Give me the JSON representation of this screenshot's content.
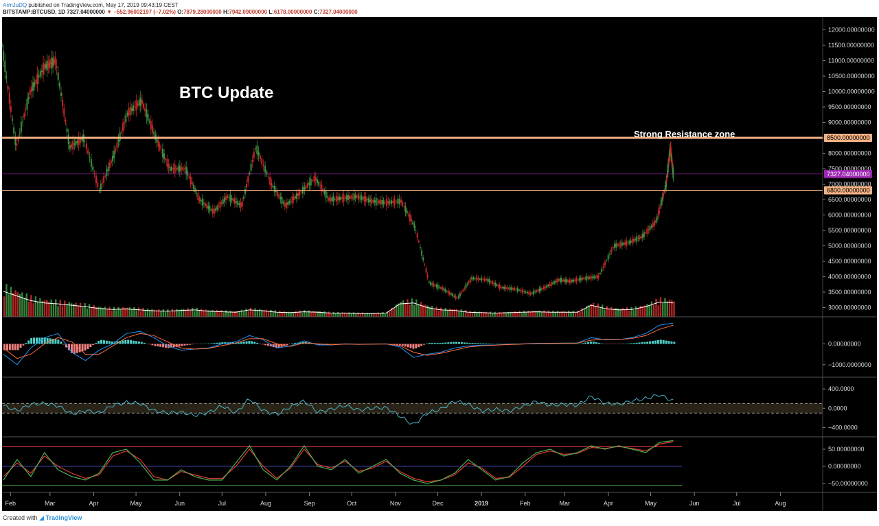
{
  "header": {
    "author": "ArmJuDQ",
    "published": "published on TradingView.com, May 17, 2019 09:43:19 CEST",
    "symbol": "BITSTAMP:BTCUSD, 1D",
    "last": "7327.04000000",
    "change": "−552.96002197 (−7.02%)",
    "o_label": "O:",
    "o_value": "7879.28000000",
    "h_label": "H:",
    "h_value": "7942.09000000",
    "l_label": "L:",
    "l_value": "6178.00000000",
    "c_label": "C:",
    "c_value": "7327.04000000"
  },
  "footer": {
    "created_with": "Created with",
    "brand": "TradingView"
  },
  "colors": {
    "background": "#000000",
    "up": "#3d9140",
    "down": "#c62828",
    "resistance": "#f4b183",
    "current_price": "#9c27b0",
    "support": "#f4b183",
    "macd_line": "#2196f3",
    "signal_line": "#ff7043",
    "hist_pos": "#4dd0c8",
    "hist_neg": "#f08080",
    "cci_line": "#4fc3d9",
    "stoch_k": "#4caf50",
    "stoch_d": "#e53935"
  },
  "chart_data": [
    {
      "type": "line",
      "panel": "price",
      "title": "BTC Update",
      "annotation": "Strong Resistance zone",
      "ylim": [
        2700,
        12300
      ],
      "yticks": [
        "12000.00000000",
        "11500.00000000",
        "11000.00000000",
        "10500.00000000",
        "10000.00000000",
        "9500.00000000",
        "9000.00000000",
        "8500.00000000",
        "8000.00000000",
        "7500.00000000",
        "7000.00000000",
        "6500.00000000",
        "6000.00000000",
        "5500.00000000",
        "5000.00000000",
        "4500.00000000",
        "4000.00000000",
        "3500.00000000",
        "3000.00000000"
      ],
      "xticks": [
        "Feb",
        "Mar",
        "Apr",
        "May",
        "Jun",
        "Jul",
        "Aug",
        "Sep",
        "Oct",
        "Nov",
        "Dec",
        "2019",
        "Feb",
        "Mar",
        "Apr",
        "May",
        "Jun",
        "Jul",
        "Aug"
      ],
      "x_range": [
        "2018-01-26",
        "2019-08-31"
      ],
      "tick_dates": [
        "2018-02-01",
        "2018-03-01",
        "2018-04-01",
        "2018-05-01",
        "2018-06-01",
        "2018-07-01",
        "2018-08-01",
        "2018-09-01",
        "2018-10-01",
        "2018-11-01",
        "2018-12-01",
        "2019-01-01",
        "2019-02-01",
        "2019-03-01",
        "2019-04-01",
        "2019-05-01",
        "2019-06-01",
        "2019-07-01",
        "2019-08-01"
      ],
      "levels": [
        {
          "name": "resistance",
          "value": 8500,
          "label": "8500.00000000"
        },
        {
          "name": "current",
          "value": 7327.04,
          "label": "7327.04000000"
        },
        {
          "name": "support",
          "value": 6800,
          "label": "6800.00000000"
        }
      ],
      "series": [
        {
          "x": [
            "2018-01-26",
            "2018-02-05",
            "2018-02-15",
            "2018-02-25",
            "2018-03-05",
            "2018-03-15",
            "2018-03-25",
            "2018-04-05",
            "2018-04-15",
            "2018-04-25",
            "2018-05-05",
            "2018-05-15",
            "2018-05-25",
            "2018-06-05",
            "2018-06-15",
            "2018-06-25",
            "2018-07-05",
            "2018-07-15",
            "2018-07-25",
            "2018-08-05",
            "2018-08-15",
            "2018-08-25",
            "2018-09-05",
            "2018-09-15",
            "2018-09-25",
            "2018-10-05",
            "2018-10-15",
            "2018-10-25",
            "2018-11-05",
            "2018-11-15",
            "2018-11-25",
            "2018-12-05",
            "2018-12-15",
            "2018-12-25",
            "2019-01-05",
            "2019-01-15",
            "2019-01-25",
            "2019-02-05",
            "2019-02-15",
            "2019-02-25",
            "2019-03-05",
            "2019-03-15",
            "2019-03-25",
            "2019-04-05",
            "2019-04-15",
            "2019-04-25",
            "2019-05-05",
            "2019-05-12",
            "2019-05-15",
            "2019-05-17"
          ],
          "values": [
            11500,
            8200,
            10000,
            10800,
            11000,
            8200,
            8500,
            6800,
            7900,
            9300,
            9700,
            8500,
            7500,
            7500,
            6500,
            6100,
            6600,
            6300,
            8200,
            7000,
            6300,
            6700,
            7200,
            6500,
            6550,
            6600,
            6450,
            6400,
            6450,
            5600,
            3800,
            3600,
            3300,
            3950,
            3900,
            3650,
            3600,
            3450,
            3650,
            3900,
            3850,
            3950,
            4000,
            5000,
            5100,
            5300,
            5800,
            7000,
            8200,
            7327
          ]
        }
      ]
    },
    {
      "type": "bar",
      "panel": "volume",
      "series_note": "daily volume columns with moving average",
      "values": [
        0.55,
        0.45,
        0.35,
        0.3,
        0.28,
        0.25,
        0.22,
        0.18,
        0.16,
        0.17,
        0.15,
        0.13,
        0.12,
        0.14,
        0.15,
        0.12,
        0.11,
        0.1,
        0.15,
        0.13,
        0.1,
        0.09,
        0.11,
        0.1,
        0.08,
        0.08,
        0.07,
        0.07,
        0.08,
        0.28,
        0.3,
        0.2,
        0.15,
        0.14,
        0.1,
        0.09,
        0.08,
        0.09,
        0.1,
        0.11,
        0.1,
        0.1,
        0.1,
        0.25,
        0.18,
        0.15,
        0.16,
        0.22,
        0.32,
        0.3
      ]
    },
    {
      "type": "area",
      "panel": "macd",
      "ylim": [
        -1500,
        1200
      ],
      "yticks": [
        "0.00000000",
        "−1000.0000000"
      ],
      "series": [
        {
          "name": "MACD",
          "values": [
            -500,
            -1000,
            -200,
            300,
            500,
            -400,
            -800,
            -300,
            0,
            500,
            600,
            300,
            -100,
            -300,
            -250,
            -200,
            0,
            100,
            400,
            200,
            -200,
            -100,
            150,
            -50,
            -50,
            0,
            -20,
            -10,
            0,
            -150,
            -650,
            -500,
            -400,
            -200,
            -100,
            -60,
            -50,
            -20,
            0,
            30,
            30,
            40,
            40,
            300,
            200,
            200,
            300,
            500,
            900,
            1000
          ]
        },
        {
          "name": "Signal",
          "values": [
            -200,
            -700,
            -500,
            0,
            300,
            100,
            -500,
            -500,
            -100,
            300,
            500,
            400,
            100,
            -200,
            -250,
            -220,
            -80,
            40,
            250,
            250,
            0,
            -120,
            50,
            0,
            -40,
            -10,
            -20,
            -15,
            -5,
            -80,
            -400,
            -550,
            -450,
            -300,
            -150,
            -90,
            -60,
            -30,
            -10,
            15,
            25,
            35,
            40,
            180,
            220,
            210,
            260,
            400,
            700,
            900
          ]
        }
      ]
    },
    {
      "type": "line",
      "panel": "cci",
      "ylim": [
        -550,
        600
      ],
      "yticks": [
        "400.0000",
        "0.0000",
        "−400.0000"
      ],
      "dashed_levels": [
        100,
        -100
      ],
      "series": [
        {
          "name": "CCI",
          "values": [
            50,
            -50,
            80,
            100,
            50,
            -120,
            -50,
            -100,
            60,
            120,
            100,
            -50,
            -100,
            -80,
            -150,
            -90,
            50,
            -100,
            200,
            -50,
            -130,
            30,
            150,
            -80,
            -20,
            60,
            -40,
            0,
            10,
            -160,
            -350,
            -100,
            -20,
            150,
            80,
            -60,
            -20,
            -60,
            40,
            140,
            60,
            80,
            60,
            250,
            100,
            80,
            150,
            200,
            280,
            150
          ]
        }
      ]
    },
    {
      "type": "line",
      "panel": "stochastic_rsi",
      "ylim": [
        -70,
        80
      ],
      "yticks": [
        "50.00000000",
        "0.00000000",
        "−50.00000000"
      ],
      "levels": [
        57,
        0,
        -55
      ],
      "series": [
        {
          "name": "K",
          "values": [
            -40,
            20,
            -30,
            40,
            -10,
            -30,
            -40,
            -20,
            40,
            50,
            10,
            -40,
            -40,
            -10,
            -30,
            -40,
            -40,
            10,
            60,
            -10,
            -40,
            0,
            60,
            0,
            -10,
            20,
            -20,
            0,
            20,
            -20,
            -40,
            -50,
            -40,
            -20,
            20,
            -10,
            -40,
            -30,
            10,
            40,
            50,
            30,
            40,
            60,
            50,
            60,
            50,
            40,
            70,
            75
          ]
        },
        {
          "name": "D",
          "values": [
            -30,
            10,
            -20,
            30,
            0,
            -20,
            -35,
            -25,
            30,
            45,
            20,
            -30,
            -40,
            -15,
            -25,
            -35,
            -35,
            0,
            50,
            0,
            -35,
            -5,
            50,
            5,
            -5,
            15,
            -15,
            -5,
            15,
            -15,
            -35,
            -45,
            -40,
            -25,
            10,
            -5,
            -35,
            -32,
            0,
            35,
            45,
            35,
            38,
            55,
            52,
            58,
            52,
            45,
            65,
            72
          ]
        }
      ]
    }
  ]
}
